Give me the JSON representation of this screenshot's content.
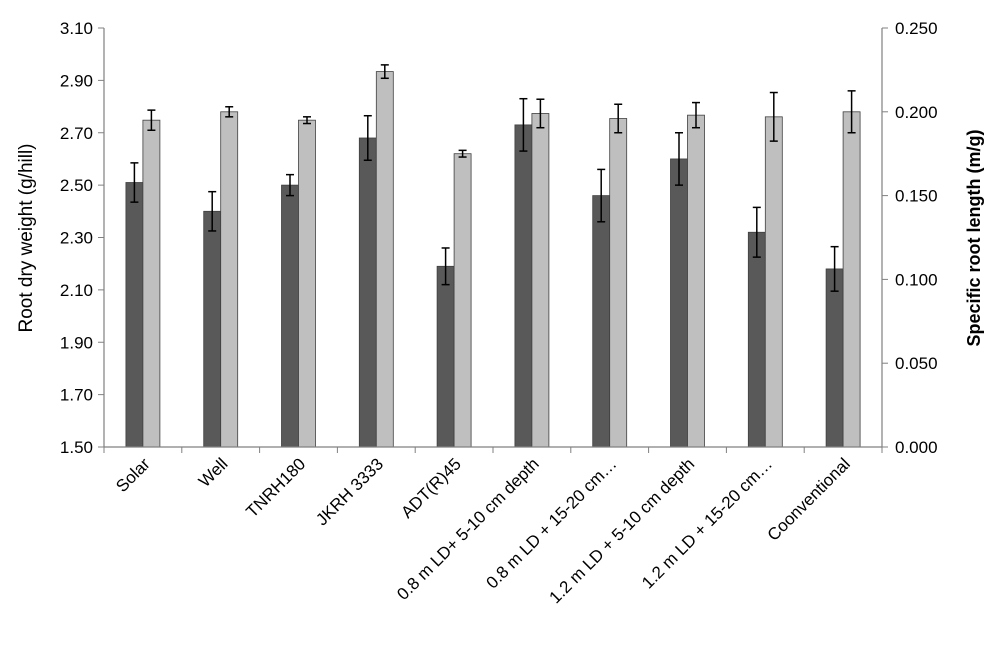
{
  "chart_data": {
    "type": "bar",
    "categories": [
      "Solar",
      "Well",
      "TNRH180",
      "JKRH 3333",
      "ADT(R)45",
      "0.8 m LD+ 5-10 cm depth",
      "0.8 m LD + 15-20 cm…",
      "1.2 m LD + 5-10 cm depth",
      "1.2 m LD + 15-20 cm…",
      "Coonventional"
    ],
    "series": [
      {
        "axis": "left",
        "color": "#595959",
        "values": [
          2.51,
          2.4,
          2.5,
          2.68,
          2.19,
          2.73,
          2.46,
          2.6,
          2.32,
          2.18
        ],
        "errors": [
          0.075,
          0.075,
          0.04,
          0.085,
          0.07,
          0.1,
          0.1,
          0.1,
          0.095,
          0.085
        ]
      },
      {
        "axis": "right",
        "color": "#bfbfbf",
        "values": [
          0.195,
          0.2,
          0.195,
          0.224,
          0.175,
          0.199,
          0.196,
          0.198,
          0.197,
          0.2
        ],
        "errors": [
          0.006,
          0.003,
          0.002,
          0.004,
          0.002,
          0.0085,
          0.0085,
          0.0075,
          0.0145,
          0.0125
        ]
      }
    ],
    "ylabel": "Root dry weight  (g/hill)",
    "y2label": "Specific root length (m/g)",
    "ylim": [
      1.5,
      3.1
    ],
    "y2lim": [
      0.0,
      0.25
    ],
    "yticks": [
      "1.50",
      "1.70",
      "1.90",
      "2.10",
      "2.30",
      "2.50",
      "2.70",
      "2.90",
      "3.10"
    ],
    "y2ticks": [
      "0.000",
      "0.050",
      "0.100",
      "0.150",
      "0.200",
      "0.250"
    ],
    "grid": false,
    "legend": "none"
  }
}
